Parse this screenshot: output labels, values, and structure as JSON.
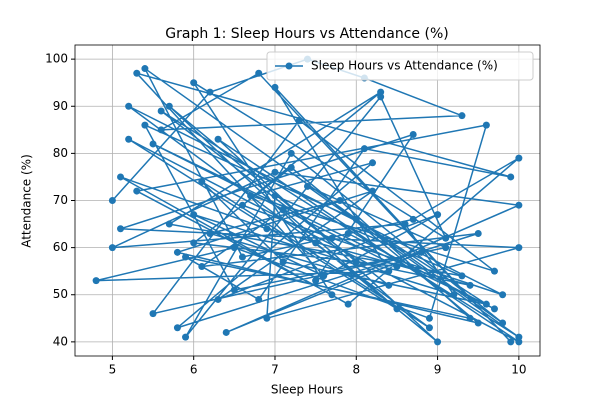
{
  "chart_data": {
    "type": "line",
    "title": "Graph 1: Sleep Hours vs Attendance (%)",
    "x_label": "Sleep Hours",
    "y_label": "Attendance (%)",
    "x": [
      5.0,
      6.2,
      7.4,
      8.1,
      9.3,
      5.6,
      6.8,
      9.9,
      7.0,
      8.4,
      4.8,
      6.5,
      8.9,
      9.6,
      5.3,
      7.7,
      6.0,
      9.1,
      8.3,
      5.9,
      7.2,
      9.8,
      5.4,
      6.6,
      8.7,
      10.0,
      7.9,
      5.1,
      6.9,
      9.4,
      8.0,
      5.7,
      7.5,
      9.0,
      6.3,
      10.0,
      5.2,
      8.5,
      7.1,
      6.1,
      9.5,
      5.8,
      8.2,
      6.7,
      9.7,
      7.3,
      5.5,
      8.8,
      6.4,
      10.0,
      7.0,
      5.0,
      8.6,
      9.2,
      6.0,
      7.6,
      5.3,
      9.9,
      8.1,
      6.8,
      5.9,
      9.4,
      7.8,
      6.2,
      8.4,
      5.6,
      10.0,
      7.4,
      9.1,
      6.5,
      5.4,
      8.0,
      9.6,
      7.1,
      6.1,
      8.9,
      5.2,
      9.8,
      7.7,
      6.6,
      8.3,
      5.7,
      9.3,
      7.0,
      6.9,
      10.0,
      5.1,
      8.7,
      7.5,
      9.0,
      6.3,
      8.2,
      5.8,
      9.5,
      7.2,
      6.0,
      8.5,
      5.5,
      9.7,
      7.9
    ],
    "series": [
      {
        "name": "Sleep Hours vs Attendance (%)",
        "color": "#1f77b4",
        "values": [
          70,
          93,
          100,
          96,
          88,
          85,
          97,
          40,
          94,
          55,
          53,
          60,
          45,
          86,
          72,
          50,
          95,
          62,
          92,
          41,
          80,
          44,
          98,
          58,
          66,
          79,
          48,
          75,
          64,
          52,
          57,
          90,
          61,
          40,
          83,
          40,
          83,
          47,
          68,
          56,
          63,
          43,
          78,
          71,
          55,
          87,
          46,
          59,
          42,
          69,
          76,
          60,
          65,
          50,
          67,
          54,
          97,
          75,
          81,
          49,
          58,
          45,
          70,
          63,
          52,
          89,
          41,
          73,
          60,
          51,
          86,
          66,
          48,
          57,
          74,
          43,
          90,
          50,
          62,
          69,
          93,
          65,
          54,
          71,
          45,
          60,
          64,
          84,
          53,
          67,
          49,
          72,
          59,
          44,
          77,
          61,
          56,
          82,
          47,
          63
        ]
      }
    ],
    "xlim": [
      4.54,
      10.26
    ],
    "ylim": [
      37,
      103
    ],
    "xticks": [
      5,
      6,
      7,
      8,
      9,
      10
    ],
    "yticks": [
      40,
      50,
      60,
      70,
      80,
      90,
      100
    ],
    "grid": true,
    "legend": "upper right"
  }
}
